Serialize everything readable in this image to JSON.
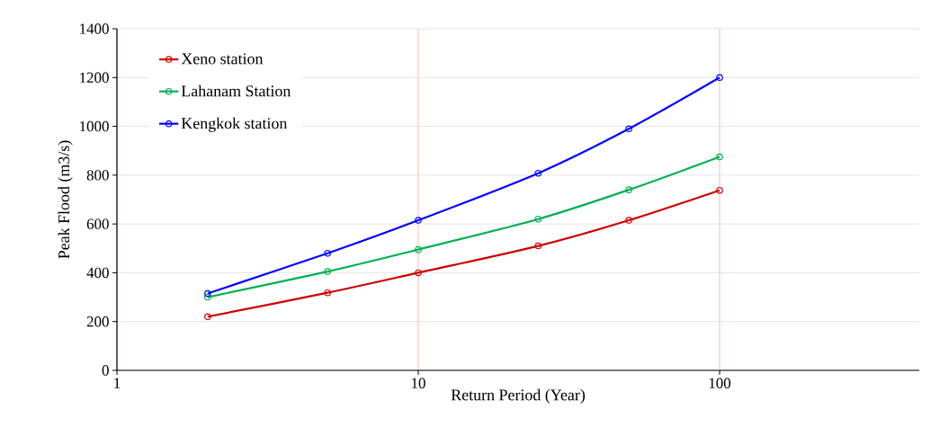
{
  "chart_data": {
    "type": "line",
    "xlabel": "Return Period (Year)",
    "ylabel": "Peak Flood (m3/s)",
    "x": [
      2,
      5,
      10,
      25,
      50,
      100
    ],
    "series": [
      {
        "name": "Xeno station",
        "color": "#cc0000",
        "values": [
          220,
          318,
          400,
          510,
          615,
          738
        ]
      },
      {
        "name": "Lahanam Station",
        "color": "#00b050",
        "values": [
          300,
          405,
          495,
          620,
          740,
          875
        ]
      },
      {
        "name": "Kengkok station",
        "color": "#0000ff",
        "values": [
          315,
          480,
          615,
          808,
          990,
          1200
        ]
      }
    ],
    "log": "x",
    "xlim": [
      1,
      460
    ],
    "xticks": [
      1,
      10,
      100
    ],
    "ylim": [
      0,
      1400
    ],
    "yticks": [
      0,
      200,
      400,
      600,
      800,
      1000,
      1200,
      1400
    ],
    "grid": true,
    "legend": "top left",
    "marker": "circle",
    "line_style": "solid"
  }
}
